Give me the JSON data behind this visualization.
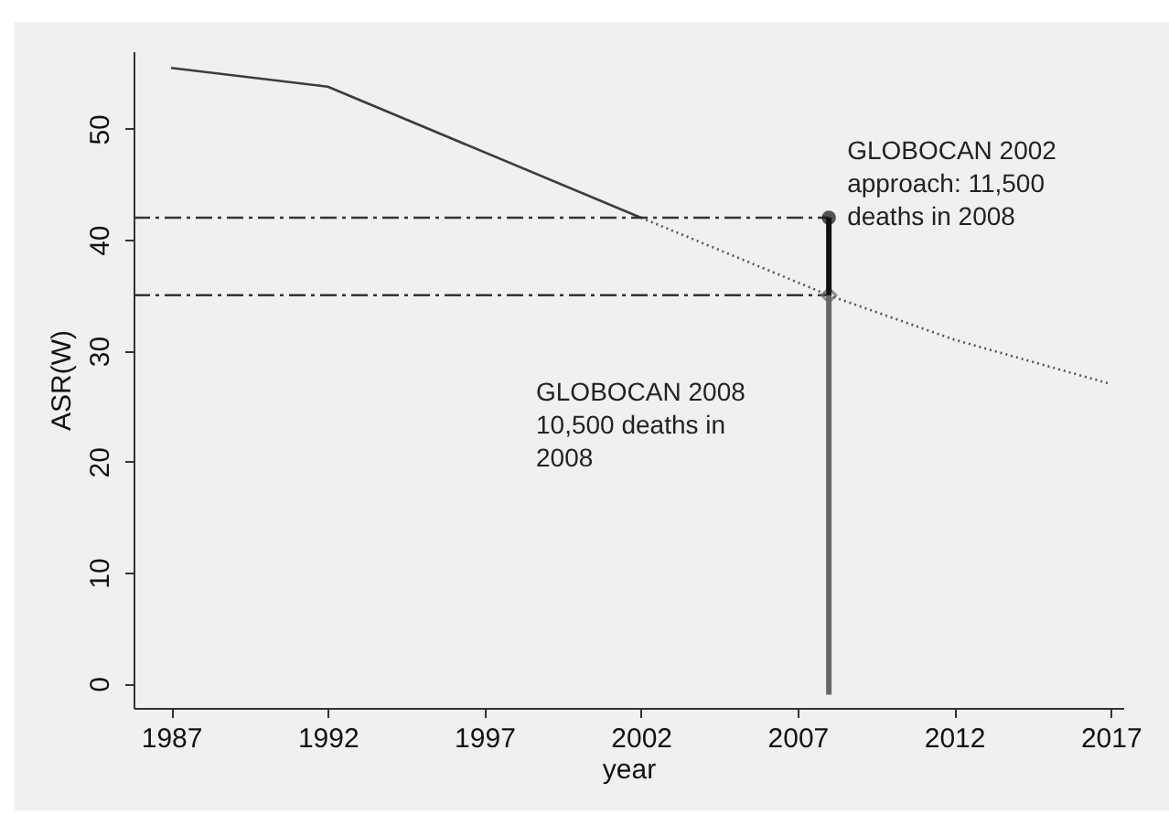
{
  "chart_data": {
    "type": "line",
    "xlabel": "year",
    "ylabel": "ASR(W)",
    "xlim": [
      1985.8,
      2017.4
    ],
    "ylim": [
      -2.2,
      57
    ],
    "xticks": [
      1987,
      1992,
      1997,
      2002,
      2007,
      2012,
      2017
    ],
    "yticks": [
      0,
      10,
      20,
      30,
      40,
      50
    ],
    "grid": false,
    "series": [
      {
        "x": [
          1987,
          1992,
          2002
        ],
        "values": [
          55.5,
          53.8,
          42
        ],
        "color": "#3c3c3c",
        "line_style": "solid",
        "marker": "none"
      },
      {
        "x": [
          2002,
          2008,
          2012,
          2017
        ],
        "values": [
          42,
          35,
          31,
          27
        ],
        "color": "#555555",
        "line_style": "dotted",
        "marker": "none"
      },
      {
        "x": [
          1985.8,
          2008
        ],
        "values": [
          42,
          42
        ],
        "color": "#333333",
        "line_style": "dashed",
        "marker": "none"
      },
      {
        "x": [
          1985.8,
          2008
        ],
        "values": [
          35,
          35
        ],
        "color": "#333333",
        "line_style": "dashed",
        "marker": "none"
      },
      {
        "x": [
          2008,
          2008
        ],
        "values": [
          -1,
          35
        ],
        "color": "#666666",
        "line_style": "solid",
        "marker": "diamond"
      },
      {
        "x": [
          2008,
          2008
        ],
        "values": [
          35,
          42
        ],
        "color": "#111111",
        "line_style": "solid",
        "marker": "circle"
      }
    ],
    "annotations": [
      {
        "text": "GLOBOCAN 2002\napproach: 11,500\ndeaths in 2008",
        "x": 2008,
        "y": 42
      },
      "GLOBOCAN 2008\n10,500 deaths in\n2008"
    ]
  }
}
